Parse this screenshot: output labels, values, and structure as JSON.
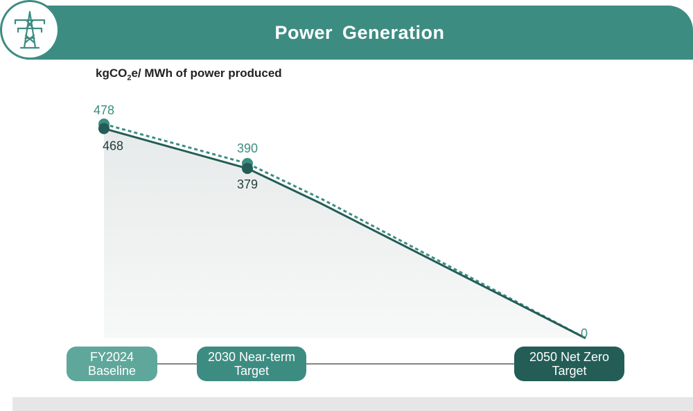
{
  "header": {
    "title": "Power Generation",
    "icon": "power-tower-icon"
  },
  "unit_label": {
    "main": "kgCO",
    "sub": "2",
    "rest": "e/ MWh of power produced"
  },
  "colors": {
    "accent": "#3d8c82",
    "dark": "#235d56",
    "baseline_pill": "#5fa79b",
    "nearterm_pill": "#3d8c82",
    "netzero_pill": "#235d56"
  },
  "milestones": [
    {
      "line1": "FY2024",
      "line2": "Baseline"
    },
    {
      "line1": "2030 Near-term",
      "line2": "Target"
    },
    {
      "line1": "2050 Net Zero",
      "line2": "Target"
    }
  ],
  "chart_data": {
    "type": "line",
    "categories": [
      "FY2024 Baseline",
      "2030 Near-term Target",
      "2050 Net Zero Target"
    ],
    "series": [
      {
        "values": [
          478,
          390,
          0
        ],
        "style": "dashed",
        "color": "#3d8c82",
        "value_labels": [
          "478",
          "390",
          "0"
        ]
      },
      {
        "values": [
          468,
          379,
          0
        ],
        "style": "solid",
        "color": "#235d56",
        "value_labels": [
          "468",
          "379",
          ""
        ]
      }
    ],
    "ylabel": "kgCO2e/ MWh of power produced",
    "ylim": [
      0,
      520
    ]
  }
}
